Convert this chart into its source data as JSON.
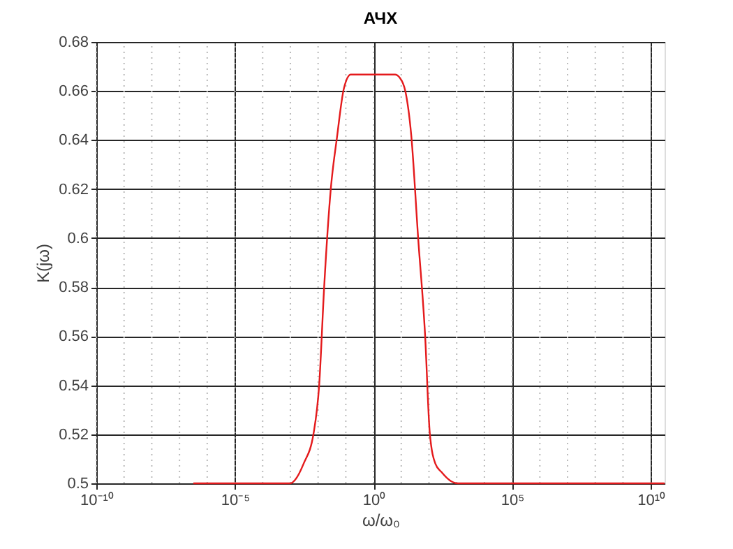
{
  "chart_data": {
    "type": "line",
    "title": "АЧХ",
    "xlabel": "ω/ω₀",
    "ylabel": "K(jω)",
    "log": "x",
    "grid": true,
    "xlim": [
      1e-10,
      31600000000.0
    ],
    "ylim": [
      0.5,
      0.68
    ],
    "xticks": [
      {
        "value": 1e-10,
        "label": "10⁻¹⁰"
      },
      {
        "value": 1e-05,
        "label": "10⁻⁵"
      },
      {
        "value": 1,
        "label": "10⁰"
      },
      {
        "value": 100000.0,
        "label": "10⁵"
      },
      {
        "value": 10000000000.0,
        "label": "10¹⁰"
      }
    ],
    "yticks": [
      0.5,
      0.52,
      0.54,
      0.56,
      0.58,
      0.6,
      0.62,
      0.64,
      0.66,
      0.68
    ],
    "series": [
      {
        "color": "#e41a1c",
        "x": [
          3.16e-07,
          0.001,
          0.0015,
          0.003,
          0.0069,
          0.011,
          0.0166,
          0.0288,
          0.0479,
          0.0851,
          0.151,
          1,
          6,
          8.7,
          14,
          22.9,
          40.7,
          72.4,
          107,
          170,
          282,
          600,
          1070,
          31600000000.0
        ],
        "values": [
          0.5,
          0.5,
          0.5015,
          0.508,
          0.5205,
          0.5405,
          0.5803,
          0.6202,
          0.641,
          0.661,
          0.6667,
          0.6667,
          0.6667,
          0.6655,
          0.66,
          0.642,
          0.6,
          0.5604,
          0.5205,
          0.508,
          0.5046,
          0.501,
          0.5,
          0.5
        ]
      }
    ]
  }
}
